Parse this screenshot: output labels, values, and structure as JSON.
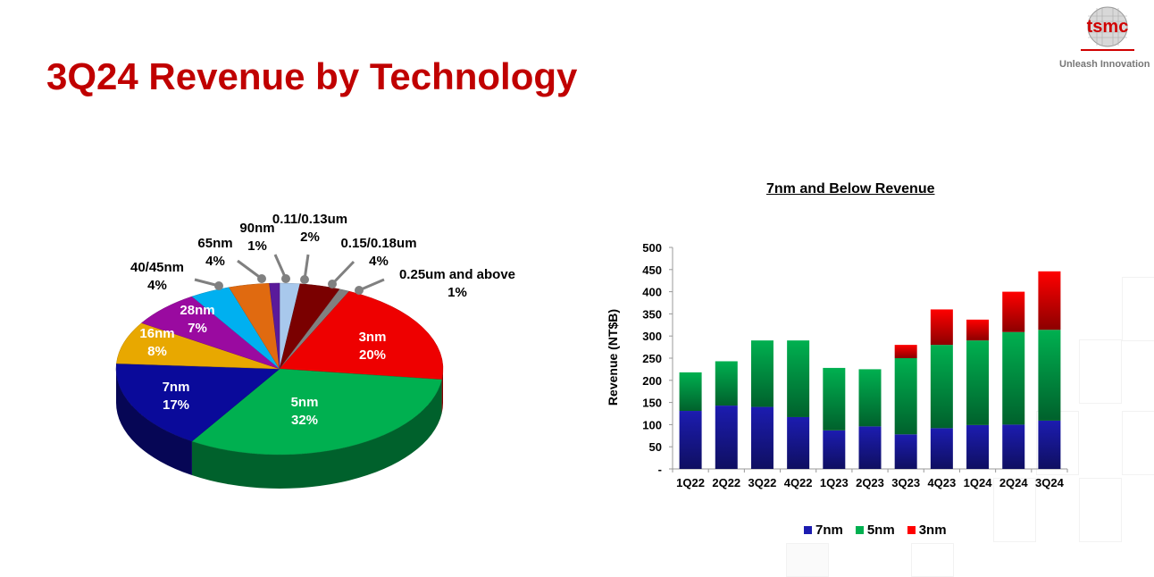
{
  "header": {
    "title": "3Q24 Revenue by Technology",
    "logo_text": "tsmc",
    "tagline": "Unleash Innovation"
  },
  "chart_data": [
    {
      "type": "pie",
      "title": "",
      "slices": [
        {
          "label": "0.11/0.13um",
          "pct_label": "2%",
          "value": 2,
          "color": "#a8c8ec"
        },
        {
          "label": "0.15/0.18um",
          "pct_label": "4%",
          "value": 4,
          "color": "#7a0000"
        },
        {
          "label": "0.25um and above",
          "pct_label": "1%",
          "value": 1,
          "color": "#808080"
        },
        {
          "label": "3nm",
          "pct_label": "20%",
          "value": 20,
          "color": "#ee0000"
        },
        {
          "label": "5nm",
          "pct_label": "32%",
          "value": 32,
          "color": "#00b050"
        },
        {
          "label": "7nm",
          "pct_label": "17%",
          "value": 17,
          "color": "#0a0a9a"
        },
        {
          "label": "16nm",
          "pct_label": "8%",
          "value": 8,
          "color": "#e8a800"
        },
        {
          "label": "28nm",
          "pct_label": "7%",
          "value": 7,
          "color": "#9a0aa0"
        },
        {
          "label": "40/45nm",
          "pct_label": "4%",
          "value": 4,
          "color": "#00b0f0"
        },
        {
          "label": "65nm",
          "pct_label": "4%",
          "value": 4,
          "color": "#e06a10"
        },
        {
          "label": "90nm",
          "pct_label": "1%",
          "value": 1,
          "color": "#5a1a9a"
        }
      ]
    },
    {
      "type": "bar",
      "stacked": true,
      "title": "7nm and Below Revenue",
      "xlabel": "",
      "ylabel": "Revenue (NT$B)",
      "ylim": [
        0,
        500
      ],
      "yticks": [
        "-",
        "50",
        "100",
        "150",
        "200",
        "250",
        "300",
        "350",
        "400",
        "450",
        "500"
      ],
      "categories": [
        "1Q22",
        "2Q22",
        "3Q22",
        "4Q22",
        "1Q23",
        "2Q23",
        "3Q23",
        "4Q23",
        "1Q24",
        "2Q24",
        "3Q24"
      ],
      "series": [
        {
          "name": "7nm",
          "color": "#1c1cb0",
          "values": [
            131,
            143,
            140,
            117,
            87,
            96,
            78,
            92,
            99,
            100,
            109
          ]
        },
        {
          "name": "5nm",
          "color": "#00b050",
          "values": [
            87,
            100,
            150,
            173,
            141,
            129,
            172,
            188,
            191,
            209,
            205
          ]
        },
        {
          "name": "3nm",
          "color": "#ff0000",
          "values": [
            0,
            0,
            0,
            0,
            0,
            0,
            30,
            80,
            47,
            91,
            132
          ]
        }
      ],
      "legend": "bottom"
    }
  ]
}
